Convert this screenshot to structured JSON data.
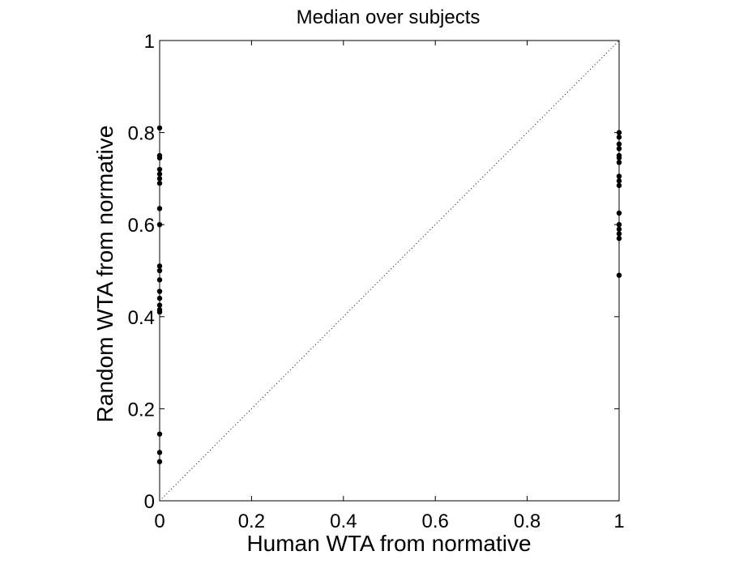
{
  "chart_data": {
    "type": "scatter",
    "title": "Median over subjects",
    "xlabel": "Human WTA from normative",
    "ylabel": "Random WTA from normative",
    "xlim": [
      0,
      1
    ],
    "ylim": [
      0,
      1
    ],
    "xticks": [
      0,
      0.2,
      0.4,
      0.6,
      0.8,
      1
    ],
    "yticks": [
      0,
      0.2,
      0.4,
      0.6,
      0.8,
      1
    ],
    "xtick_labels": [
      "0",
      "0.2",
      "0.4",
      "0.6",
      "0.8",
      "1"
    ],
    "ytick_labels": [
      "0",
      "0.2",
      "0.4",
      "0.6",
      "0.8",
      "1"
    ],
    "grid": false,
    "reference_line": "y = x (dotted)",
    "marker_color": "#000000",
    "points": [
      {
        "x": 0,
        "y": 0.81
      },
      {
        "x": 0,
        "y": 0.75
      },
      {
        "x": 0,
        "y": 0.745
      },
      {
        "x": 0,
        "y": 0.72
      },
      {
        "x": 0,
        "y": 0.71
      },
      {
        "x": 0,
        "y": 0.7
      },
      {
        "x": 0,
        "y": 0.69
      },
      {
        "x": 0,
        "y": 0.635
      },
      {
        "x": 0,
        "y": 0.6
      },
      {
        "x": 0,
        "y": 0.51
      },
      {
        "x": 0,
        "y": 0.5
      },
      {
        "x": 0,
        "y": 0.48
      },
      {
        "x": 0,
        "y": 0.455
      },
      {
        "x": 0,
        "y": 0.44
      },
      {
        "x": 0,
        "y": 0.425
      },
      {
        "x": 0,
        "y": 0.415
      },
      {
        "x": 0,
        "y": 0.41
      },
      {
        "x": 0,
        "y": 0.145
      },
      {
        "x": 0,
        "y": 0.105
      },
      {
        "x": 0,
        "y": 0.085
      },
      {
        "x": 1,
        "y": 0.8
      },
      {
        "x": 1,
        "y": 0.79
      },
      {
        "x": 1,
        "y": 0.775
      },
      {
        "x": 1,
        "y": 0.765
      },
      {
        "x": 1,
        "y": 0.75
      },
      {
        "x": 1,
        "y": 0.745
      },
      {
        "x": 1,
        "y": 0.735
      },
      {
        "x": 1,
        "y": 0.705
      },
      {
        "x": 1,
        "y": 0.695
      },
      {
        "x": 1,
        "y": 0.685
      },
      {
        "x": 1,
        "y": 0.625
      },
      {
        "x": 1,
        "y": 0.6
      },
      {
        "x": 1,
        "y": 0.59
      },
      {
        "x": 1,
        "y": 0.58
      },
      {
        "x": 1,
        "y": 0.57
      },
      {
        "x": 1,
        "y": 0.49
      }
    ]
  }
}
